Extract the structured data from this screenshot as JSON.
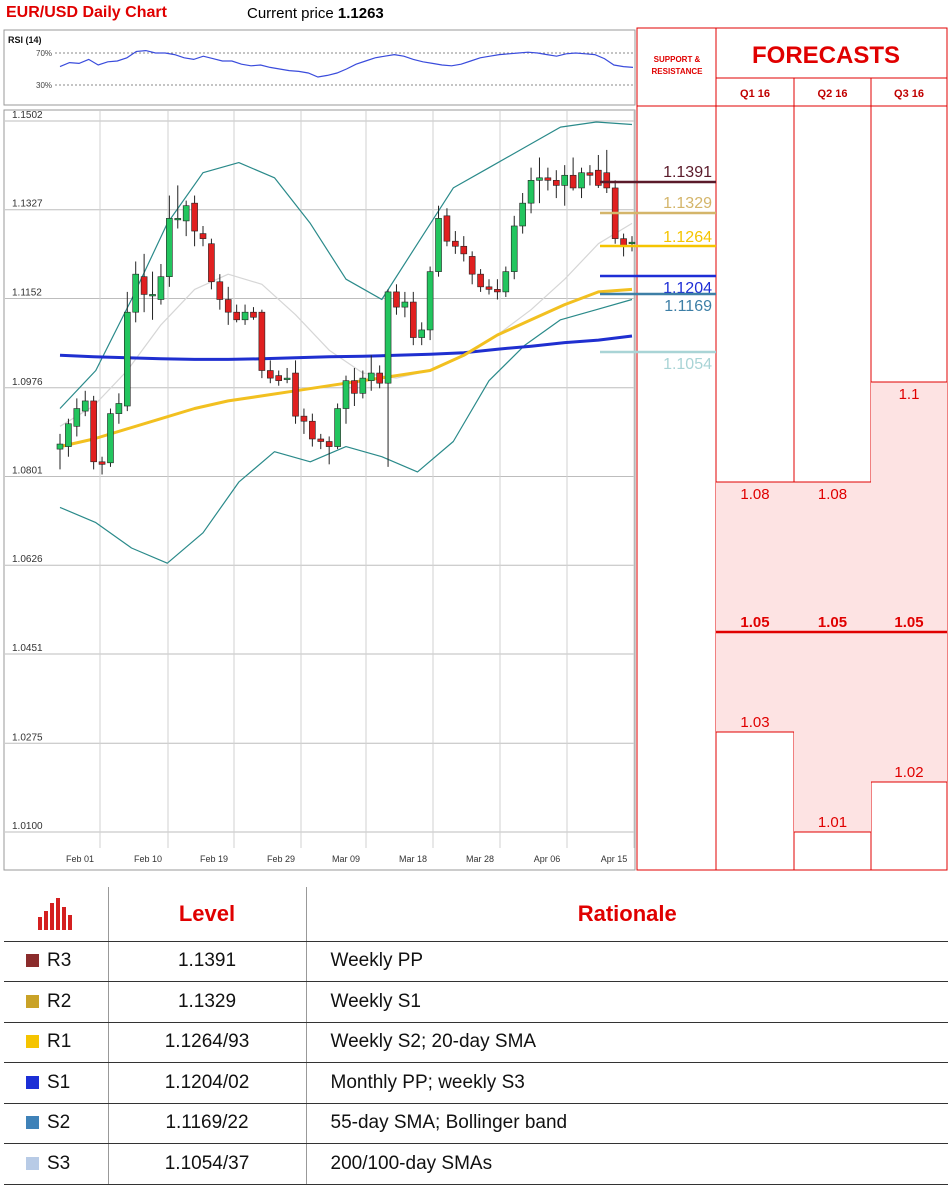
{
  "header": {
    "title": "EUR/USD Daily Chart",
    "current_price_label": "Current price",
    "current_price": "1.1263"
  },
  "chart_data": {
    "type": "candlestick",
    "title": "EUR/USD Daily Chart",
    "y_ticks": [
      "1.1502",
      "1.1327",
      "1.1152",
      "1.0976",
      "1.0801",
      "1.0626",
      "1.0451",
      "1.0275",
      "1.0100"
    ],
    "ylim": [
      1.01,
      1.1502
    ],
    "x_ticks": [
      "Feb 01",
      "Feb 10",
      "Feb 19",
      "Feb 29",
      "Mar 09",
      "Mar 18",
      "Mar 28",
      "Apr 06",
      "Apr 15"
    ],
    "rsi": {
      "label": "RSI (14)",
      "levels": [
        "70%",
        "30%"
      ],
      "values": [
        53,
        58,
        57,
        62,
        55,
        59,
        60,
        64,
        72,
        73,
        70,
        70,
        68,
        64,
        62,
        66,
        63,
        60,
        60,
        56,
        54,
        55,
        52,
        50,
        48,
        47,
        45,
        40,
        42,
        45,
        50,
        56,
        60,
        64,
        66,
        68,
        66,
        62,
        59,
        57,
        55,
        54,
        56,
        60,
        64,
        66,
        68,
        69,
        70,
        71,
        70,
        68,
        66,
        69,
        70,
        69,
        68,
        63,
        55,
        53,
        52
      ]
    },
    "candles": [
      {
        "o": 1.0855,
        "h": 1.0885,
        "l": 1.0815,
        "c": 1.0865
      },
      {
        "o": 1.086,
        "h": 1.0915,
        "l": 1.084,
        "c": 1.0905
      },
      {
        "o": 1.09,
        "h": 1.0955,
        "l": 1.088,
        "c": 1.0935
      },
      {
        "o": 1.093,
        "h": 1.097,
        "l": 1.092,
        "c": 1.095
      },
      {
        "o": 1.095,
        "h": 1.096,
        "l": 1.0815,
        "c": 1.083
      },
      {
        "o": 1.083,
        "h": 1.084,
        "l": 1.0805,
        "c": 1.0825
      },
      {
        "o": 1.0828,
        "h": 1.0935,
        "l": 1.082,
        "c": 1.0925
      },
      {
        "o": 1.0925,
        "h": 1.0965,
        "l": 1.0905,
        "c": 1.0945
      },
      {
        "o": 1.094,
        "h": 1.1165,
        "l": 1.093,
        "c": 1.1125
      },
      {
        "o": 1.1125,
        "h": 1.1225,
        "l": 1.1105,
        "c": 1.12
      },
      {
        "o": 1.1195,
        "h": 1.124,
        "l": 1.1125,
        "c": 1.116
      },
      {
        "o": 1.116,
        "h": 1.1205,
        "l": 1.111,
        "c": 1.116
      },
      {
        "o": 1.115,
        "h": 1.122,
        "l": 1.114,
        "c": 1.1195
      },
      {
        "o": 1.1195,
        "h": 1.1355,
        "l": 1.1175,
        "c": 1.131
      },
      {
        "o": 1.131,
        "h": 1.1375,
        "l": 1.129,
        "c": 1.131
      },
      {
        "o": 1.1305,
        "h": 1.1345,
        "l": 1.1275,
        "c": 1.1335
      },
      {
        "o": 1.134,
        "h": 1.1355,
        "l": 1.1255,
        "c": 1.1285
      },
      {
        "o": 1.128,
        "h": 1.1295,
        "l": 1.1255,
        "c": 1.127
      },
      {
        "o": 1.126,
        "h": 1.127,
        "l": 1.117,
        "c": 1.1185
      },
      {
        "o": 1.1185,
        "h": 1.12,
        "l": 1.113,
        "c": 1.115
      },
      {
        "o": 1.115,
        "h": 1.1175,
        "l": 1.11,
        "c": 1.1125
      },
      {
        "o": 1.1125,
        "h": 1.114,
        "l": 1.1105,
        "c": 1.111
      },
      {
        "o": 1.111,
        "h": 1.114,
        "l": 1.11,
        "c": 1.1125
      },
      {
        "o": 1.1125,
        "h": 1.1135,
        "l": 1.111,
        "c": 1.1115
      },
      {
        "o": 1.1125,
        "h": 1.113,
        "l": 1.0995,
        "c": 1.101
      },
      {
        "o": 1.101,
        "h": 1.103,
        "l": 1.0985,
        "c": 1.0995
      },
      {
        "o": 1.1,
        "h": 1.101,
        "l": 1.098,
        "c": 1.099
      },
      {
        "o": 1.0995,
        "h": 1.1015,
        "l": 1.0985,
        "c": 1.0995
      },
      {
        "o": 1.1005,
        "h": 1.103,
        "l": 1.0905,
        "c": 1.092
      },
      {
        "o": 1.092,
        "h": 1.0935,
        "l": 1.0885,
        "c": 1.091
      },
      {
        "o": 1.091,
        "h": 1.0925,
        "l": 1.086,
        "c": 1.0875
      },
      {
        "o": 1.0875,
        "h": 1.0885,
        "l": 1.0855,
        "c": 1.087
      },
      {
        "o": 1.087,
        "h": 1.088,
        "l": 1.0825,
        "c": 1.086
      },
      {
        "o": 1.086,
        "h": 1.0945,
        "l": 1.0855,
        "c": 1.0935
      },
      {
        "o": 1.0935,
        "h": 1.1,
        "l": 1.0905,
        "c": 1.099
      },
      {
        "o": 1.099,
        "h": 1.1015,
        "l": 1.094,
        "c": 1.0965
      },
      {
        "o": 1.0965,
        "h": 1.101,
        "l": 1.0955,
        "c": 1.0995
      },
      {
        "o": 1.099,
        "h": 1.104,
        "l": 1.097,
        "c": 1.1005
      },
      {
        "o": 1.1005,
        "h": 1.102,
        "l": 1.0975,
        "c": 1.0985
      },
      {
        "o": 1.0985,
        "h": 1.117,
        "l": 1.082,
        "c": 1.1165
      },
      {
        "o": 1.1165,
        "h": 1.118,
        "l": 1.112,
        "c": 1.1135
      },
      {
        "o": 1.1135,
        "h": 1.1165,
        "l": 1.1115,
        "c": 1.1145
      },
      {
        "o": 1.1145,
        "h": 1.1165,
        "l": 1.106,
        "c": 1.1075
      },
      {
        "o": 1.1075,
        "h": 1.1105,
        "l": 1.106,
        "c": 1.109
      },
      {
        "o": 1.109,
        "h": 1.1215,
        "l": 1.107,
        "c": 1.1205
      },
      {
        "o": 1.1205,
        "h": 1.1335,
        "l": 1.1195,
        "c": 1.131
      },
      {
        "o": 1.1315,
        "h": 1.133,
        "l": 1.1255,
        "c": 1.1265
      },
      {
        "o": 1.1265,
        "h": 1.1285,
        "l": 1.124,
        "c": 1.1255
      },
      {
        "o": 1.1255,
        "h": 1.1275,
        "l": 1.1225,
        "c": 1.124
      },
      {
        "o": 1.1235,
        "h": 1.1245,
        "l": 1.118,
        "c": 1.12
      },
      {
        "o": 1.12,
        "h": 1.121,
        "l": 1.1165,
        "c": 1.1175
      },
      {
        "o": 1.1175,
        "h": 1.119,
        "l": 1.116,
        "c": 1.117
      },
      {
        "o": 1.117,
        "h": 1.119,
        "l": 1.115,
        "c": 1.1165
      },
      {
        "o": 1.1165,
        "h": 1.1215,
        "l": 1.1155,
        "c": 1.1205
      },
      {
        "o": 1.1205,
        "h": 1.1315,
        "l": 1.119,
        "c": 1.1295
      },
      {
        "o": 1.1295,
        "h": 1.136,
        "l": 1.128,
        "c": 1.134
      },
      {
        "o": 1.134,
        "h": 1.141,
        "l": 1.132,
        "c": 1.1385
      },
      {
        "o": 1.1385,
        "h": 1.143,
        "l": 1.134,
        "c": 1.139
      },
      {
        "o": 1.139,
        "h": 1.141,
        "l": 1.1365,
        "c": 1.1385
      },
      {
        "o": 1.1385,
        "h": 1.1405,
        "l": 1.135,
        "c": 1.1375
      },
      {
        "o": 1.1375,
        "h": 1.1415,
        "l": 1.1335,
        "c": 1.1395
      },
      {
        "o": 1.1395,
        "h": 1.143,
        "l": 1.1365,
        "c": 1.137
      },
      {
        "o": 1.137,
        "h": 1.141,
        "l": 1.135,
        "c": 1.14
      },
      {
        "o": 1.14,
        "h": 1.1415,
        "l": 1.1375,
        "c": 1.1395
      },
      {
        "o": 1.1405,
        "h": 1.1435,
        "l": 1.137,
        "c": 1.1375
      },
      {
        "o": 1.14,
        "h": 1.1445,
        "l": 1.136,
        "c": 1.137
      },
      {
        "o": 1.137,
        "h": 1.1385,
        "l": 1.126,
        "c": 1.127
      },
      {
        "o": 1.127,
        "h": 1.128,
        "l": 1.1235,
        "c": 1.1255
      },
      {
        "o": 1.126,
        "h": 1.1275,
        "l": 1.1245,
        "c": 1.1263
      }
    ],
    "sma_200": [
      1.104,
      1.1037,
      1.1035,
      1.1033,
      1.1032,
      1.1032,
      1.1033,
      1.1035,
      1.1037,
      1.1038,
      1.104,
      1.1042,
      1.1045,
      1.1052,
      1.1058,
      1.1065,
      1.107,
      1.1078
    ],
    "sma_55": [
      1.086,
      1.0875,
      1.0895,
      1.0915,
      1.0935,
      1.095,
      1.096,
      1.097,
      1.098,
      1.099,
      1.1,
      1.101,
      1.104,
      1.108,
      1.111,
      1.114,
      1.1165,
      1.117
    ],
    "sma_20": [
      1.09,
      1.094,
      1.101,
      1.11,
      1.117,
      1.12,
      1.118,
      1.112,
      1.105,
      1.1005,
      1.0995,
      1.101,
      1.104,
      1.108,
      1.113,
      1.119,
      1.126,
      1.13
    ],
    "bb_upper": [
      1.0935,
      1.101,
      1.115,
      1.13,
      1.14,
      1.142,
      1.139,
      1.13,
      1.119,
      1.115,
      1.126,
      1.137,
      1.141,
      1.145,
      1.149,
      1.15,
      1.1495
    ],
    "bb_lower": [
      1.074,
      1.071,
      1.066,
      1.063,
      1.069,
      1.079,
      1.085,
      1.083,
      1.086,
      1.084,
      1.081,
      1.087,
      1.099,
      1.106,
      1.111,
      1.113,
      1.115
    ]
  },
  "sr_panel": {
    "header": "SUPPORT & RESISTANCE",
    "levels": [
      {
        "value": "1.1391",
        "color": "#5a1a2a"
      },
      {
        "value": "1.1329",
        "color": "#d4b56a"
      },
      {
        "value": "1.1264",
        "color": "#f5c400"
      },
      {
        "value": "1.1204",
        "color": "#1e2ed6"
      },
      {
        "value": "1.1169",
        "color": "#3d7fa6"
      },
      {
        "value": "1.1054",
        "color": "#a9d4d6"
      }
    ]
  },
  "forecasts": {
    "title": "FORECASTS",
    "columns": [
      {
        "label": "Q1 16",
        "high": "1.08",
        "mid": "1.05",
        "low": "1.03"
      },
      {
        "label": "Q2 16",
        "high": "1.08",
        "mid": "1.05",
        "low": "1.01"
      },
      {
        "label": "Q3 16",
        "high": "1.1",
        "mid": "1.05",
        "low": "1.02"
      }
    ]
  },
  "levels_table": {
    "headers": {
      "level": "Level",
      "rationale": "Rationale"
    },
    "rows": [
      {
        "name": "R3",
        "color": "#8b2c2c",
        "level": "1.1391",
        "rationale": "Weekly PP"
      },
      {
        "name": "R2",
        "color": "#c9a227",
        "level": "1.1329",
        "rationale": "Weekly S1"
      },
      {
        "name": "R1",
        "color": "#f5c400",
        "level": "1.1264/93",
        "rationale": "Weekly S2; 20-day SMA"
      },
      {
        "name": "S1",
        "color": "#1c2fd6",
        "level": "1.1204/02",
        "rationale": "Monthly PP; weekly S3"
      },
      {
        "name": "S2",
        "color": "#3f82b8",
        "level": "1.1169/22",
        "rationale": "55-day SMA; Bollinger band"
      },
      {
        "name": "S3",
        "color": "#b8cbe6",
        "level": "1.1054/37",
        "rationale": "200/100-day SMAs"
      }
    ]
  },
  "colors": {
    "accent": "#e00000",
    "forecast_fill": "#fde3e3",
    "candle_up": "#22c55e",
    "candle_down": "#e02020"
  },
  "icons": {
    "table_header": "bar-chart-icon"
  }
}
